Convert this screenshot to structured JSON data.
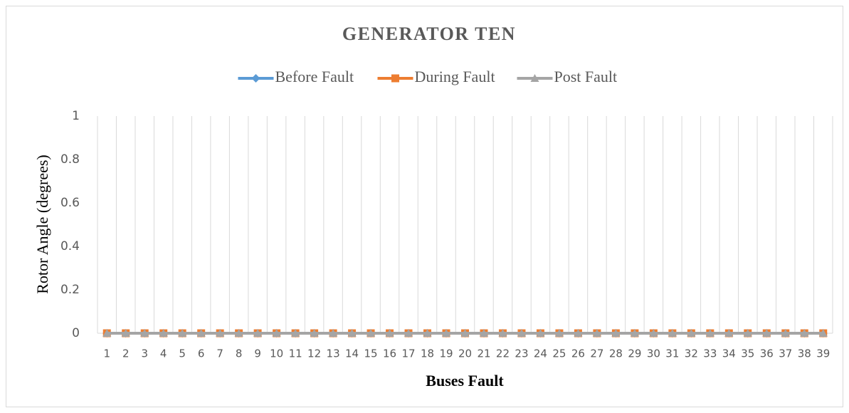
{
  "chart_data": {
    "type": "line",
    "title": "GENERATOR TEN",
    "x_label": "Buses Fault",
    "y_label": "Rotor Angle (degrees)",
    "categories": [
      "1",
      "2",
      "3",
      "4",
      "5",
      "6",
      "7",
      "8",
      "9",
      "10",
      "11",
      "12",
      "13",
      "14",
      "15",
      "16",
      "17",
      "18",
      "19",
      "20",
      "21",
      "22",
      "23",
      "24",
      "25",
      "26",
      "27",
      "28",
      "29",
      "30",
      "31",
      "32",
      "33",
      "34",
      "35",
      "36",
      "37",
      "38",
      "39"
    ],
    "series": [
      {
        "name": "Before Fault",
        "color": "#5b9bd5",
        "marker": "diamond",
        "values": [
          0,
          0,
          0,
          0,
          0,
          0,
          0,
          0,
          0,
          0,
          0,
          0,
          0,
          0,
          0,
          0,
          0,
          0,
          0,
          0,
          0,
          0,
          0,
          0,
          0,
          0,
          0,
          0,
          0,
          0,
          0,
          0,
          0,
          0,
          0,
          0,
          0,
          0,
          0
        ]
      },
      {
        "name": "During Fault",
        "color": "#ed7d31",
        "marker": "square",
        "values": [
          0,
          0,
          0,
          0,
          0,
          0,
          0,
          0,
          0,
          0,
          0,
          0,
          0,
          0,
          0,
          0,
          0,
          0,
          0,
          0,
          0,
          0,
          0,
          0,
          0,
          0,
          0,
          0,
          0,
          0,
          0,
          0,
          0,
          0,
          0,
          0,
          0,
          0,
          0
        ]
      },
      {
        "name": "Post Fault",
        "color": "#a5a5a5",
        "marker": "triangle",
        "values": [
          0,
          0,
          0,
          0,
          0,
          0,
          0,
          0,
          0,
          0,
          0,
          0,
          0,
          0,
          0,
          0,
          0,
          0,
          0,
          0,
          0,
          0,
          0,
          0,
          0,
          0,
          0,
          0,
          0,
          0,
          0,
          0,
          0,
          0,
          0,
          0,
          0,
          0,
          0
        ]
      }
    ],
    "ylim": [
      0,
      1
    ],
    "yticks": [
      0,
      0.2,
      0.4,
      0.6,
      0.8,
      1
    ],
    "grid": false,
    "xgrid": true,
    "legend": "top"
  }
}
